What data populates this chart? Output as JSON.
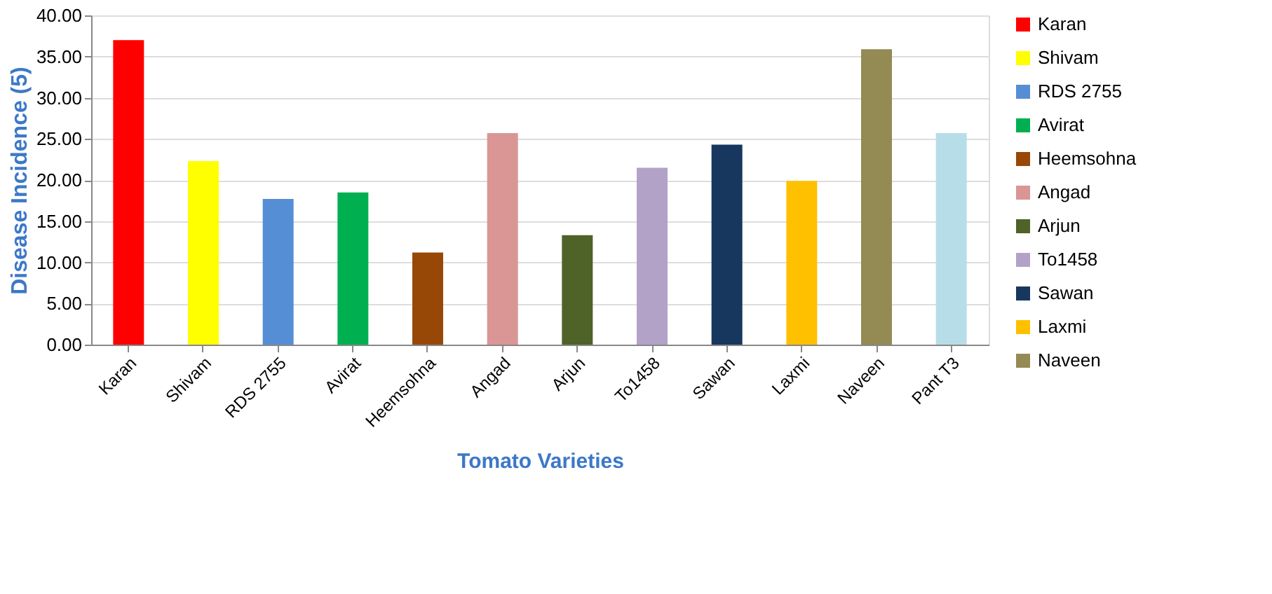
{
  "chart_data": {
    "type": "bar",
    "xlabel": "Tomato Varieties",
    "ylabel": "Disease Incidence (5)",
    "categories": [
      "Karan",
      "Shivam",
      "RDS 2755",
      "Avirat",
      "Heemsohna",
      "Angad",
      "Arjun",
      "To1458",
      "Sawan",
      "Laxmi",
      "Naveen",
      "Pant T3"
    ],
    "series": [
      {
        "name": "Karan",
        "color": "#ff0000",
        "values": [
          37.0,
          null,
          null,
          null,
          null,
          null,
          null,
          null,
          null,
          null,
          null,
          null
        ]
      },
      {
        "name": "Shivam",
        "color": "#ffff00",
        "values": [
          null,
          22.3,
          null,
          null,
          null,
          null,
          null,
          null,
          null,
          null,
          null,
          null
        ]
      },
      {
        "name": "RDS 2755",
        "color": "#558ed5",
        "values": [
          null,
          null,
          17.7,
          null,
          null,
          null,
          null,
          null,
          null,
          null,
          null,
          null
        ]
      },
      {
        "name": "Avirat",
        "color": "#00b050",
        "values": [
          null,
          null,
          null,
          18.5,
          null,
          null,
          null,
          null,
          null,
          null,
          null,
          null
        ]
      },
      {
        "name": "Heemsohna",
        "color": "#974806",
        "values": [
          null,
          null,
          null,
          null,
          11.2,
          null,
          null,
          null,
          null,
          null,
          null,
          null
        ]
      },
      {
        "name": "Angad",
        "color": "#d99694",
        "values": [
          null,
          null,
          null,
          null,
          null,
          25.7,
          null,
          null,
          null,
          null,
          null,
          null
        ]
      },
      {
        "name": "Arjun",
        "color": "#4f6228",
        "values": [
          null,
          null,
          null,
          null,
          null,
          null,
          13.3,
          null,
          null,
          null,
          null,
          null
        ]
      },
      {
        "name": "To1458",
        "color": "#b3a2c7",
        "values": [
          null,
          null,
          null,
          null,
          null,
          null,
          null,
          21.5,
          null,
          null,
          null,
          null
        ]
      },
      {
        "name": "Sawan",
        "color": "#17375e",
        "values": [
          null,
          null,
          null,
          null,
          null,
          null,
          null,
          null,
          24.3,
          null,
          null,
          null
        ]
      },
      {
        "name": "Laxmi",
        "color": "#ffc000",
        "values": [
          null,
          null,
          null,
          null,
          null,
          null,
          null,
          null,
          null,
          19.9,
          null,
          null
        ]
      },
      {
        "name": "Naveen",
        "color": "#948a54",
        "values": [
          null,
          null,
          null,
          null,
          null,
          null,
          null,
          null,
          null,
          null,
          35.9,
          null
        ]
      },
      {
        "color": "#b7dee8",
        "values": [
          null,
          null,
          null,
          null,
          null,
          null,
          null,
          null,
          null,
          null,
          null,
          25.7
        ]
      }
    ],
    "ylim": [
      0,
      40
    ],
    "yticks": [
      {
        "value": 0,
        "label": "0.00"
      },
      {
        "value": 5,
        "label": "5.00"
      },
      {
        "value": 10,
        "label": "10.00"
      },
      {
        "value": 15,
        "label": "15.00"
      },
      {
        "value": 20,
        "label": "20.00"
      },
      {
        "value": 25,
        "label": "25.00"
      },
      {
        "value": 30,
        "label": "30.00"
      },
      {
        "value": 35,
        "label": "35.00"
      },
      {
        "value": 40,
        "label": "40.00"
      }
    ],
    "grid": "y",
    "legend": "right"
  }
}
